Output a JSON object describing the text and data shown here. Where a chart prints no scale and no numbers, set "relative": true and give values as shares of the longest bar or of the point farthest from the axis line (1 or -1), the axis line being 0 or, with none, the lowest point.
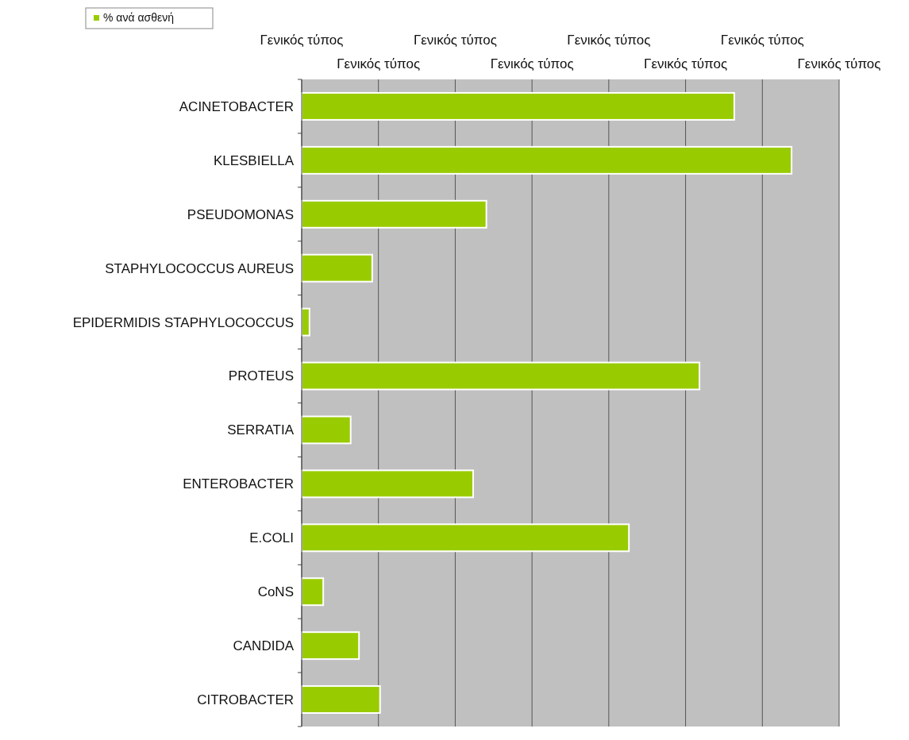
{
  "chart_data": {
    "type": "bar",
    "orientation": "horizontal",
    "relative": true,
    "categories": [
      "ACINETOBACTER",
      "KLESBIELLA",
      "PSEUDOMONAS",
      "STAPHYLOCOCCUS AUREUS",
      "EPIDERMIDIS STAPHYLOCOCCUS",
      "PROTEUS",
      "SERRATIA",
      "ENTEROBACTER",
      "E.COLI",
      "CoNS",
      "CANDIDA",
      "CITROBACTER"
    ],
    "series": [
      {
        "name": "% ανά ασθενή",
        "color": "#99cc00",
        "values": [
          0.883,
          1,
          0.377,
          0.144,
          0.016,
          0.812,
          0.1,
          0.35,
          0.668,
          0.044,
          0.117,
          0.16
        ]
      }
    ],
    "annotations": [
      "Γενικός τύπος",
      "Γενικός τύπος",
      "Γενικός τύπος",
      "Γενικός τύπος",
      "Γενικός τύπος",
      "Γενικός τύπος",
      "Γενικός τύπος",
      "Γενικός τύπος"
    ],
    "grid": "x",
    "legend": "top left"
  }
}
